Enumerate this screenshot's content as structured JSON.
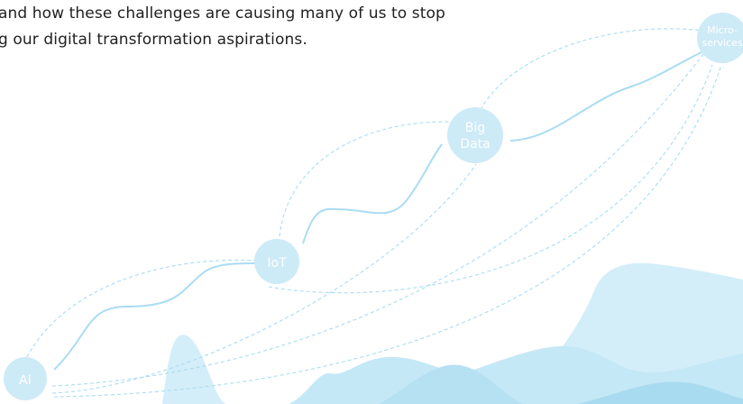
{
  "intro": {
    "line1": "and how these challenges are causing many of us to stop",
    "line2": "g our digital transformation aspirations."
  },
  "nodes": {
    "ai": {
      "label": "AI"
    },
    "iot": {
      "label": "IoT"
    },
    "big_data": {
      "line1": "Big",
      "line2": "Data"
    },
    "microservices": {
      "line1": "Micro-",
      "line2": "services"
    }
  },
  "colors": {
    "node_fill": "#cdeaf7",
    "line": "#a9dcf3",
    "wave_light": "#d3eef9",
    "wave_mid": "#b9e3f4",
    "wave_dark": "#a6dbf0"
  }
}
